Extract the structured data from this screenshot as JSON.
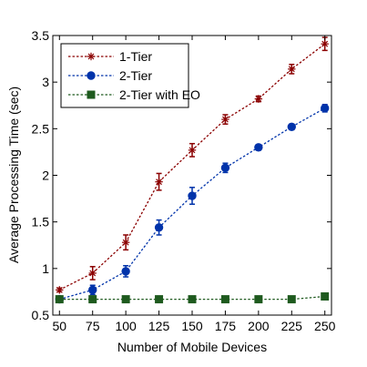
{
  "chart_data": {
    "type": "line",
    "title": "",
    "xlabel": "Number of Mobile Devices",
    "ylabel": "Average Processing Time (sec)",
    "x": [
      50,
      75,
      100,
      125,
      150,
      175,
      200,
      225,
      250
    ],
    "xticks": [
      "50",
      "75",
      "100",
      "125",
      "150",
      "175",
      "200",
      "225",
      "250"
    ],
    "xlim": [
      45,
      255
    ],
    "ylim": [
      0.5,
      3.5
    ],
    "yticks": [
      "0.5",
      "1",
      "1.5",
      "2",
      "2.5",
      "3",
      "3.5"
    ],
    "ytick_values": [
      0.5,
      1,
      1.5,
      2,
      2.5,
      3,
      3.5
    ],
    "legend_position": "top-left",
    "grid": false,
    "series": [
      {
        "name": "1-Tier",
        "color": "#8b0000",
        "marker": "asterisk",
        "values": [
          0.77,
          0.95,
          1.28,
          1.93,
          2.27,
          2.6,
          2.82,
          3.14,
          3.41
        ],
        "errors": [
          0.02,
          0.07,
          0.08,
          0.09,
          0.07,
          0.05,
          0.03,
          0.05,
          0.07
        ]
      },
      {
        "name": "2-Tier",
        "color": "#0033aa",
        "marker": "circle",
        "values": [
          0.67,
          0.77,
          0.97,
          1.44,
          1.78,
          2.08,
          2.3,
          2.52,
          2.72
        ],
        "errors": [
          0.03,
          0.05,
          0.06,
          0.08,
          0.09,
          0.05,
          0.03,
          0.03,
          0.04
        ]
      },
      {
        "name": "2-Tier with EO",
        "color": "#1e5a1e",
        "marker": "square",
        "values": [
          0.67,
          0.67,
          0.67,
          0.67,
          0.67,
          0.67,
          0.67,
          0.67,
          0.7
        ],
        "errors": [
          0.01,
          0.01,
          0.01,
          0.01,
          0.01,
          0.01,
          0.01,
          0.01,
          0.02
        ]
      }
    ]
  }
}
